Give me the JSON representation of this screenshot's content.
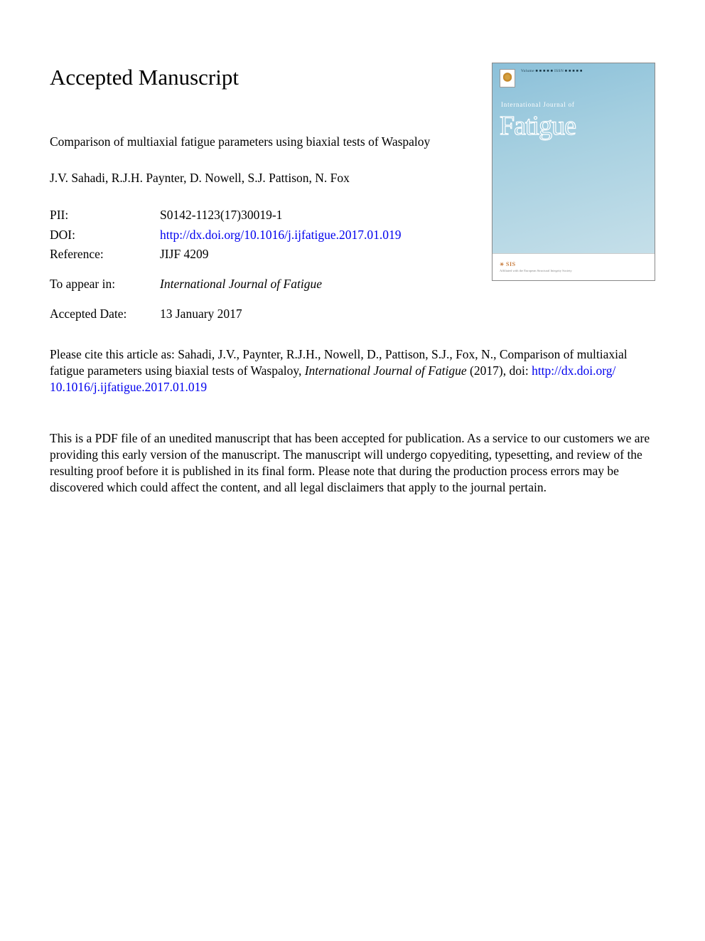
{
  "heading": "Accepted Manuscript",
  "article_title": "Comparison of multiaxial fatigue parameters using biaxial tests of Waspaloy",
  "authors": "J.V. Sahadi, R.J.H. Paynter, D. Nowell, S.J. Pattison, N. Fox",
  "meta": {
    "pii_label": "PII:",
    "pii_value": "S0142-1123(17)30019-1",
    "doi_label": "DOI:",
    "doi_value": "http://dx.doi.org/10.1016/j.ijfatigue.2017.01.019",
    "reference_label": "Reference:",
    "reference_value": "JIJF 4209",
    "appear_label": "To appear in:",
    "appear_value": "International Journal of Fatigue",
    "accepted_label": "Accepted Date:",
    "accepted_value": "13 January 2017"
  },
  "cover": {
    "top_text": "Volume ■ ■ ■ ■ ■ ISSN ■ ■ ■ ■ ■",
    "subtitle": "International Journal of",
    "title": "Fatigue",
    "footer_logo": "SIS",
    "footer_tagline": "Affiliated with the European Structural Integrity Society"
  },
  "citation": {
    "prefix": "Please cite this article as: Sahadi, J.V., Paynter, R.J.H., Nowell, D., Pattison, S.J., Fox, N., Comparison of multiaxial fatigue parameters using biaxial tests of Waspaloy, ",
    "journal": "International Journal of Fatigue",
    "year_doi_label": " (2017), doi: ",
    "doi_link1": "http://dx.doi.org/",
    "doi_link2": "10.1016/j.ijfatigue.2017.01.019"
  },
  "disclaimer": "This is a PDF file of an unedited manuscript that has been accepted for publication. As a service to our customers we are providing this early version of the manuscript. The manuscript will undergo copyediting, typesetting, and review of the resulting proof before it is published in its final form. Please note that during the production process errors may be discovered which could affect the content, and all legal disclaimers that apply to the journal pertain."
}
